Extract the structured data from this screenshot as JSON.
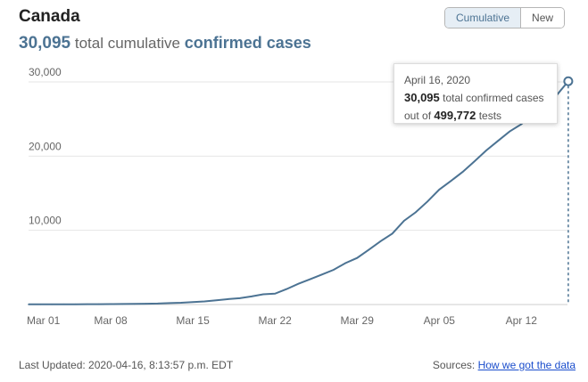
{
  "header": {
    "title": "Canada",
    "total_value": "30,095",
    "total_text": "total cumulative",
    "highlight_text": "confirmed cases"
  },
  "toggle": {
    "cumulative_label": "Cumulative",
    "new_label": "New",
    "active": "Cumulative"
  },
  "tooltip": {
    "date": "April 16, 2020",
    "cases_value": "30,095",
    "cases_text": "total confirmed cases",
    "tests_prefix": "out of",
    "tests_value": "499,772",
    "tests_suffix": "tests"
  },
  "footer": {
    "last_updated": "Last Updated: 2020-04-16, 8:13:57 p.m. EDT",
    "sources_label": "Sources:",
    "sources_link": "How we got the data"
  },
  "colors": {
    "line": "#4c7393",
    "accent": "#4c7393",
    "grid": "#e6e6e6"
  },
  "chart_data": {
    "type": "line",
    "title": "",
    "xlabel": "",
    "ylabel": "",
    "x_tick_labels": [
      "Mar 01",
      "Mar 08",
      "Mar 15",
      "Mar 22",
      "Mar 29",
      "Apr 05",
      "Apr 12"
    ],
    "y_tick_labels": [
      "10,000",
      "20,000",
      "30,000"
    ],
    "y_ticks": [
      10000,
      20000,
      30000
    ],
    "ylim": [
      0,
      30000
    ],
    "grid": true,
    "series": [
      {
        "x": [
          "2020-03-01",
          "2020-03-02",
          "2020-03-03",
          "2020-03-04",
          "2020-03-05",
          "2020-03-06",
          "2020-03-07",
          "2020-03-08",
          "2020-03-09",
          "2020-03-10",
          "2020-03-11",
          "2020-03-12",
          "2020-03-13",
          "2020-03-14",
          "2020-03-15",
          "2020-03-16",
          "2020-03-17",
          "2020-03-18",
          "2020-03-19",
          "2020-03-20",
          "2020-03-21",
          "2020-03-22",
          "2020-03-23",
          "2020-03-24",
          "2020-03-25",
          "2020-03-26",
          "2020-03-27",
          "2020-03-28",
          "2020-03-29",
          "2020-03-30",
          "2020-03-31",
          "2020-04-01",
          "2020-04-02",
          "2020-04-03",
          "2020-04-04",
          "2020-04-05",
          "2020-04-06",
          "2020-04-07",
          "2020-04-08",
          "2020-04-09",
          "2020-04-10",
          "2020-04-11",
          "2020-04-12",
          "2020-04-13",
          "2020-04-14",
          "2020-04-15",
          "2020-04-16"
        ],
        "values": [
          20,
          24,
          27,
          33,
          37,
          45,
          54,
          62,
          77,
          79,
          108,
          138,
          191,
          241,
          341,
          415,
          569,
          727,
          846,
          1087,
          1384,
          1469,
          2091,
          2792,
          3409,
          4043,
          4682,
          5576,
          6280,
          7398,
          8527,
          9560,
          11284,
          12437,
          13882,
          15496,
          16653,
          17872,
          19290,
          20765,
          22046,
          23318,
          24298,
          25680,
          26897,
          28205,
          30095
        ],
        "highlight_index": 46
      }
    ]
  }
}
